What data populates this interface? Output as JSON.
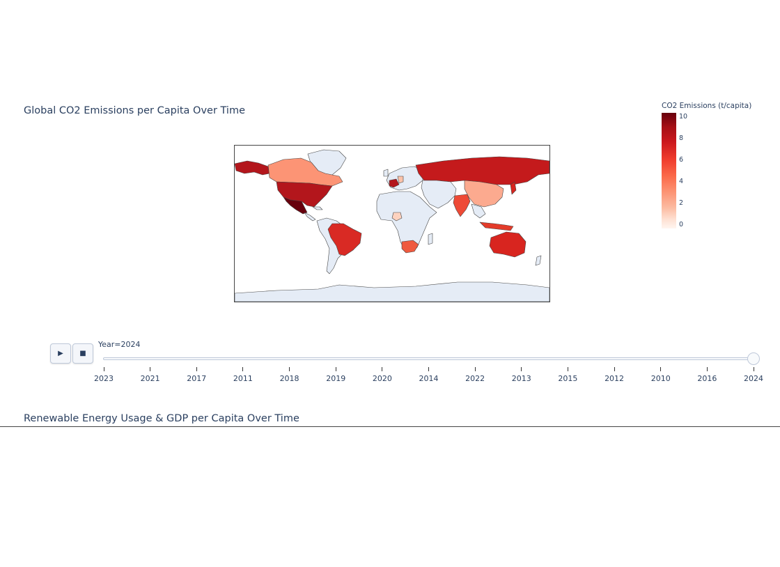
{
  "chart1": {
    "title": "Global CO2 Emissions per Capita Over Time",
    "colorbar": {
      "title": "CO2 Emissions (t/capita)",
      "ticks": [
        "10",
        "8",
        "6",
        "4",
        "2",
        "0"
      ],
      "colorscale": [
        "#fff5f0",
        "#fee0d2",
        "#fcbba1",
        "#fc9272",
        "#fb6a4a",
        "#ef3b2c",
        "#cb181d",
        "#a50f15",
        "#67000d"
      ]
    },
    "land_color": "#e5ecf6",
    "map_colors": {
      "usa": "#b3161c",
      "mexico": "#67000d",
      "canada": "#fc9475",
      "brazil": "#d92a24",
      "russia": "#c41a1c",
      "china": "#fcaa8f",
      "india": "#ee4a36",
      "australia": "#d8251f",
      "south_africa": "#ef5a3f",
      "indonesia": "#e33b2a",
      "france": "#b3161c",
      "germany": "#fbc2a9",
      "nigeria": "#fdd2bf",
      "japan": "#d8251f"
    }
  },
  "animation": {
    "play_icon": "play-icon",
    "stop_icon": "stop-icon",
    "current_label": "Year=2024",
    "years": [
      "2023",
      "2021",
      "2017",
      "2011",
      "2018",
      "2019",
      "2020",
      "2014",
      "2022",
      "2013",
      "2015",
      "2012",
      "2010",
      "2016",
      "2024"
    ],
    "selected_index": 14
  },
  "chart2": {
    "title": "Renewable Energy Usage & GDP per Capita Over Time"
  }
}
